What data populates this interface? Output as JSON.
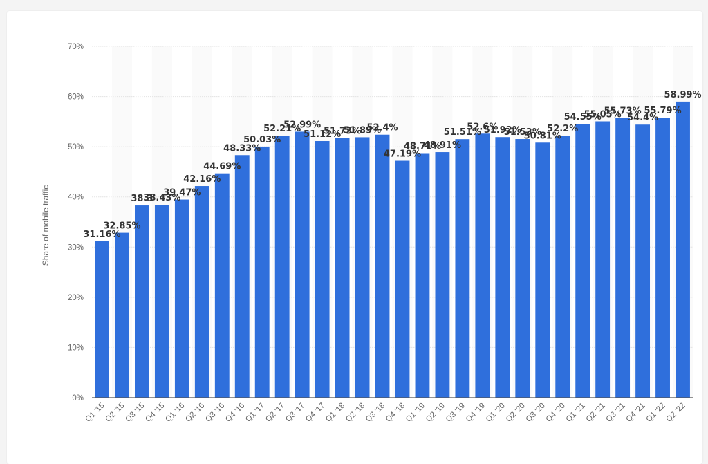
{
  "chart_data": {
    "type": "bar",
    "title": "",
    "xlabel": "",
    "ylabel": "Share of mobile traffic",
    "ylim": [
      0,
      70
    ],
    "yticks": [
      0,
      10,
      20,
      30,
      40,
      50,
      60,
      70
    ],
    "ytick_labels": [
      "0%",
      "10%",
      "20%",
      "30%",
      "40%",
      "50%",
      "60%",
      "70%"
    ],
    "grid": true,
    "bar_color": "#2f6fdc",
    "categories": [
      "Q1 '15",
      "Q2 '15",
      "Q3 '15",
      "Q4 '15",
      "Q1 '16",
      "Q2 '16",
      "Q3 '16",
      "Q4 '16",
      "Q1 '17",
      "Q2 '17",
      "Q3 '17",
      "Q4 '17",
      "Q1 '18",
      "Q2 '18",
      "Q3 '18",
      "Q4 '18",
      "Q1 '19",
      "Q2 '19",
      "Q3 '19",
      "Q4 '19",
      "Q1 '20",
      "Q2 '20",
      "Q3 '20",
      "Q4 '20",
      "Q1 '21",
      "Q2 '21",
      "Q3 '21",
      "Q4 '21",
      "Q1 '22",
      "Q2 '22"
    ],
    "values": [
      31.16,
      32.85,
      38.3,
      38.43,
      39.47,
      42.16,
      44.69,
      48.33,
      50.03,
      52.21,
      52.99,
      51.12,
      51.73,
      51.89,
      52.4,
      47.19,
      48.71,
      48.91,
      51.51,
      52.6,
      51.92,
      51.53,
      50.81,
      52.2,
      54.55,
      55.05,
      55.73,
      54.4,
      55.79,
      58.99
    ],
    "value_labels": [
      "31.16%",
      "32.85%",
      "38.3",
      "38.43%",
      "39.47%",
      "42.16%",
      "44.69%",
      "48.33%",
      "50.03%",
      "52.21%",
      "52.99%",
      "51.12%",
      "51.73%",
      "51.89%",
      "52.4%",
      "47.19%",
      "48.71%",
      "48.91%",
      "51.51%",
      "52.6%",
      "51.92%",
      "51.53%",
      "50.81%",
      "52.2%",
      "54.55%",
      "55.05%",
      "55.73%",
      "54.4%",
      "55.79%",
      "58.99%"
    ]
  }
}
